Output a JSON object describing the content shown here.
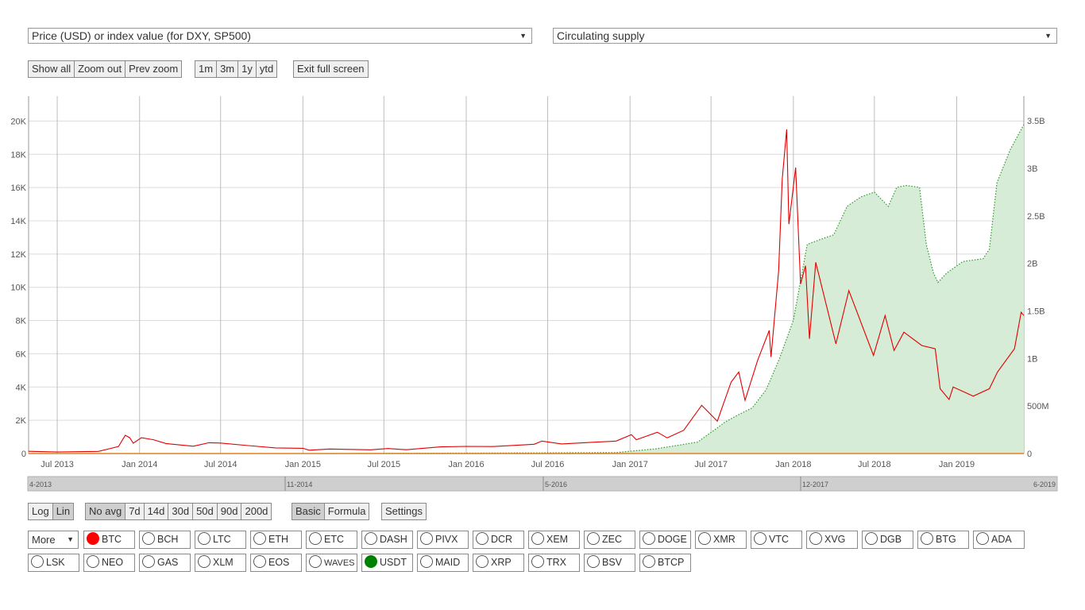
{
  "selects": {
    "left": "Price (USD) or index value (for DXY, SP500)",
    "right": "Circulating supply"
  },
  "zoom_buttons": [
    "Show all",
    "Zoom out",
    "Prev zoom"
  ],
  "range_buttons": [
    "1m",
    "3m",
    "1y",
    "ytd"
  ],
  "fullscreen_button": "Exit full screen",
  "scale_buttons": [
    "Log",
    "Lin"
  ],
  "avg_buttons": [
    "No avg",
    "7d",
    "14d",
    "30d",
    "50d",
    "90d",
    "200d"
  ],
  "mode_buttons": [
    "Basic",
    "Formula"
  ],
  "settings_button": "Settings",
  "more_select": "More",
  "coins_row1": [
    {
      "label": "BTC",
      "color": "#ff0000"
    },
    {
      "label": "BCH"
    },
    {
      "label": "LTC"
    },
    {
      "label": "ETH"
    },
    {
      "label": "ETC"
    },
    {
      "label": "DASH"
    },
    {
      "label": "PIVX"
    },
    {
      "label": "DCR"
    },
    {
      "label": "XEM"
    },
    {
      "label": "ZEC"
    },
    {
      "label": "DOGE"
    },
    {
      "label": "XMR"
    },
    {
      "label": "VTC"
    },
    {
      "label": "XVG"
    },
    {
      "label": "DGB"
    },
    {
      "label": "BTG"
    },
    {
      "label": "ADA"
    }
  ],
  "coins_row2": [
    {
      "label": "LSK"
    },
    {
      "label": "NEO"
    },
    {
      "label": "GAS"
    },
    {
      "label": "XLM"
    },
    {
      "label": "EOS"
    },
    {
      "label": "WAVES"
    },
    {
      "label": "USDT",
      "color": "#008000"
    },
    {
      "label": "MAID"
    },
    {
      "label": "XRP"
    },
    {
      "label": "TRX"
    },
    {
      "label": "BSV"
    },
    {
      "label": "BTCP"
    }
  ],
  "chart_data": {
    "type": "line",
    "x_ticks": [
      "Jul 2013",
      "Jan 2014",
      "Jul 2014",
      "Jan 2015",
      "Jul 2015",
      "Jan 2016",
      "Jul 2016",
      "Jan 2017",
      "Jul 2017",
      "Jan 2018",
      "Jul 2018",
      "Jan 2019"
    ],
    "y_left_ticks": [
      "0",
      "2K",
      "4K",
      "6K",
      "8K",
      "10K",
      "12K",
      "14K",
      "16K",
      "18K",
      "20K"
    ],
    "y_right_ticks": [
      "0",
      "500M",
      "1B",
      "1.5B",
      "2B",
      "2.5B",
      "3B",
      "3.5B"
    ],
    "y_left_range": [
      0,
      21500
    ],
    "y_right_range": [
      0,
      3760000000
    ],
    "x_range": [
      "2013-04-28",
      "2019-05-31"
    ],
    "navigator_labels": [
      "4-2013",
      "11-2014",
      "5-2016",
      "12-2017",
      "6-2019"
    ],
    "grid": true,
    "series": [
      {
        "name": "BTC",
        "axis": "left",
        "color": "#e00000",
        "style": "solid",
        "points": [
          [
            "2013-04-28",
            135
          ],
          [
            "2013-07-01",
            90
          ],
          [
            "2013-10-01",
            130
          ],
          [
            "2013-11-15",
            420
          ],
          [
            "2013-11-30",
            1100
          ],
          [
            "2013-12-10",
            950
          ],
          [
            "2013-12-18",
            620
          ],
          [
            "2014-01-05",
            950
          ],
          [
            "2014-02-01",
            830
          ],
          [
            "2014-03-01",
            600
          ],
          [
            "2014-05-01",
            440
          ],
          [
            "2014-06-05",
            650
          ],
          [
            "2014-07-01",
            630
          ],
          [
            "2014-09-01",
            480
          ],
          [
            "2014-11-01",
            340
          ],
          [
            "2015-01-01",
            315
          ],
          [
            "2015-01-15",
            200
          ],
          [
            "2015-03-01",
            270
          ],
          [
            "2015-06-01",
            225
          ],
          [
            "2015-07-10",
            300
          ],
          [
            "2015-08-20",
            230
          ],
          [
            "2015-11-05",
            400
          ],
          [
            "2016-01-01",
            430
          ],
          [
            "2016-03-01",
            420
          ],
          [
            "2016-06-01",
            560
          ],
          [
            "2016-06-18",
            750
          ],
          [
            "2016-08-01",
            580
          ],
          [
            "2016-12-01",
            750
          ],
          [
            "2017-01-04",
            1130
          ],
          [
            "2017-01-15",
            830
          ],
          [
            "2017-03-03",
            1280
          ],
          [
            "2017-03-25",
            940
          ],
          [
            "2017-05-01",
            1400
          ],
          [
            "2017-06-10",
            2900
          ],
          [
            "2017-07-15",
            1950
          ],
          [
            "2017-08-15",
            4300
          ],
          [
            "2017-09-01",
            4900
          ],
          [
            "2017-09-15",
            3200
          ],
          [
            "2017-10-13",
            5600
          ],
          [
            "2017-11-08",
            7400
          ],
          [
            "2017-11-12",
            5800
          ],
          [
            "2017-11-29",
            11000
          ],
          [
            "2017-12-07",
            16500
          ],
          [
            "2017-12-17",
            19500
          ],
          [
            "2017-12-22",
            13800
          ],
          [
            "2018-01-06",
            17200
          ],
          [
            "2018-01-17",
            10200
          ],
          [
            "2018-01-28",
            11300
          ],
          [
            "2018-02-06",
            6900
          ],
          [
            "2018-02-20",
            11500
          ],
          [
            "2018-04-06",
            6600
          ],
          [
            "2018-05-05",
            9800
          ],
          [
            "2018-06-29",
            5900
          ],
          [
            "2018-07-25",
            8300
          ],
          [
            "2018-08-14",
            6200
          ],
          [
            "2018-09-05",
            7300
          ],
          [
            "2018-10-15",
            6500
          ],
          [
            "2018-11-14",
            6300
          ],
          [
            "2018-11-25",
            3900
          ],
          [
            "2018-12-15",
            3250
          ],
          [
            "2018-12-24",
            4000
          ],
          [
            "2019-02-07",
            3450
          ],
          [
            "2019-03-15",
            3900
          ],
          [
            "2019-04-02",
            4900
          ],
          [
            "2019-05-10",
            6300
          ],
          [
            "2019-05-25",
            8500
          ],
          [
            "2019-05-31",
            8300
          ]
        ]
      },
      {
        "name": "USDT",
        "axis": "right",
        "color": "#2a9a2a",
        "fill": "#d6ecd6",
        "style": "dotted",
        "points": [
          [
            "2015-02-25",
            0
          ],
          [
            "2016-06-01",
            7000000
          ],
          [
            "2016-12-01",
            10000000
          ],
          [
            "2017-03-01",
            50000000
          ],
          [
            "2017-06-01",
            120000000
          ],
          [
            "2017-07-15",
            270000000
          ],
          [
            "2017-08-01",
            330000000
          ],
          [
            "2017-09-01",
            410000000
          ],
          [
            "2017-10-01",
            480000000
          ],
          [
            "2017-11-01",
            670000000
          ],
          [
            "2017-12-01",
            1000000000
          ],
          [
            "2018-01-01",
            1400000000
          ],
          [
            "2018-02-01",
            2200000000
          ],
          [
            "2018-03-01",
            2250000000
          ],
          [
            "2018-04-01",
            2300000000
          ],
          [
            "2018-05-01",
            2600000000
          ],
          [
            "2018-06-01",
            2700000000
          ],
          [
            "2018-07-01",
            2750000000
          ],
          [
            "2018-08-01",
            2600000000
          ],
          [
            "2018-08-20",
            2800000000
          ],
          [
            "2018-09-10",
            2820000000
          ],
          [
            "2018-10-10",
            2800000000
          ],
          [
            "2018-10-25",
            2200000000
          ],
          [
            "2018-11-10",
            1900000000
          ],
          [
            "2018-11-20",
            1800000000
          ],
          [
            "2018-12-10",
            1900000000
          ],
          [
            "2019-01-15",
            2020000000
          ],
          [
            "2019-03-01",
            2050000000
          ],
          [
            "2019-03-15",
            2150000000
          ],
          [
            "2019-04-01",
            2850000000
          ],
          [
            "2019-05-01",
            3200000000
          ],
          [
            "2019-05-31",
            3460000000
          ]
        ]
      }
    ]
  }
}
